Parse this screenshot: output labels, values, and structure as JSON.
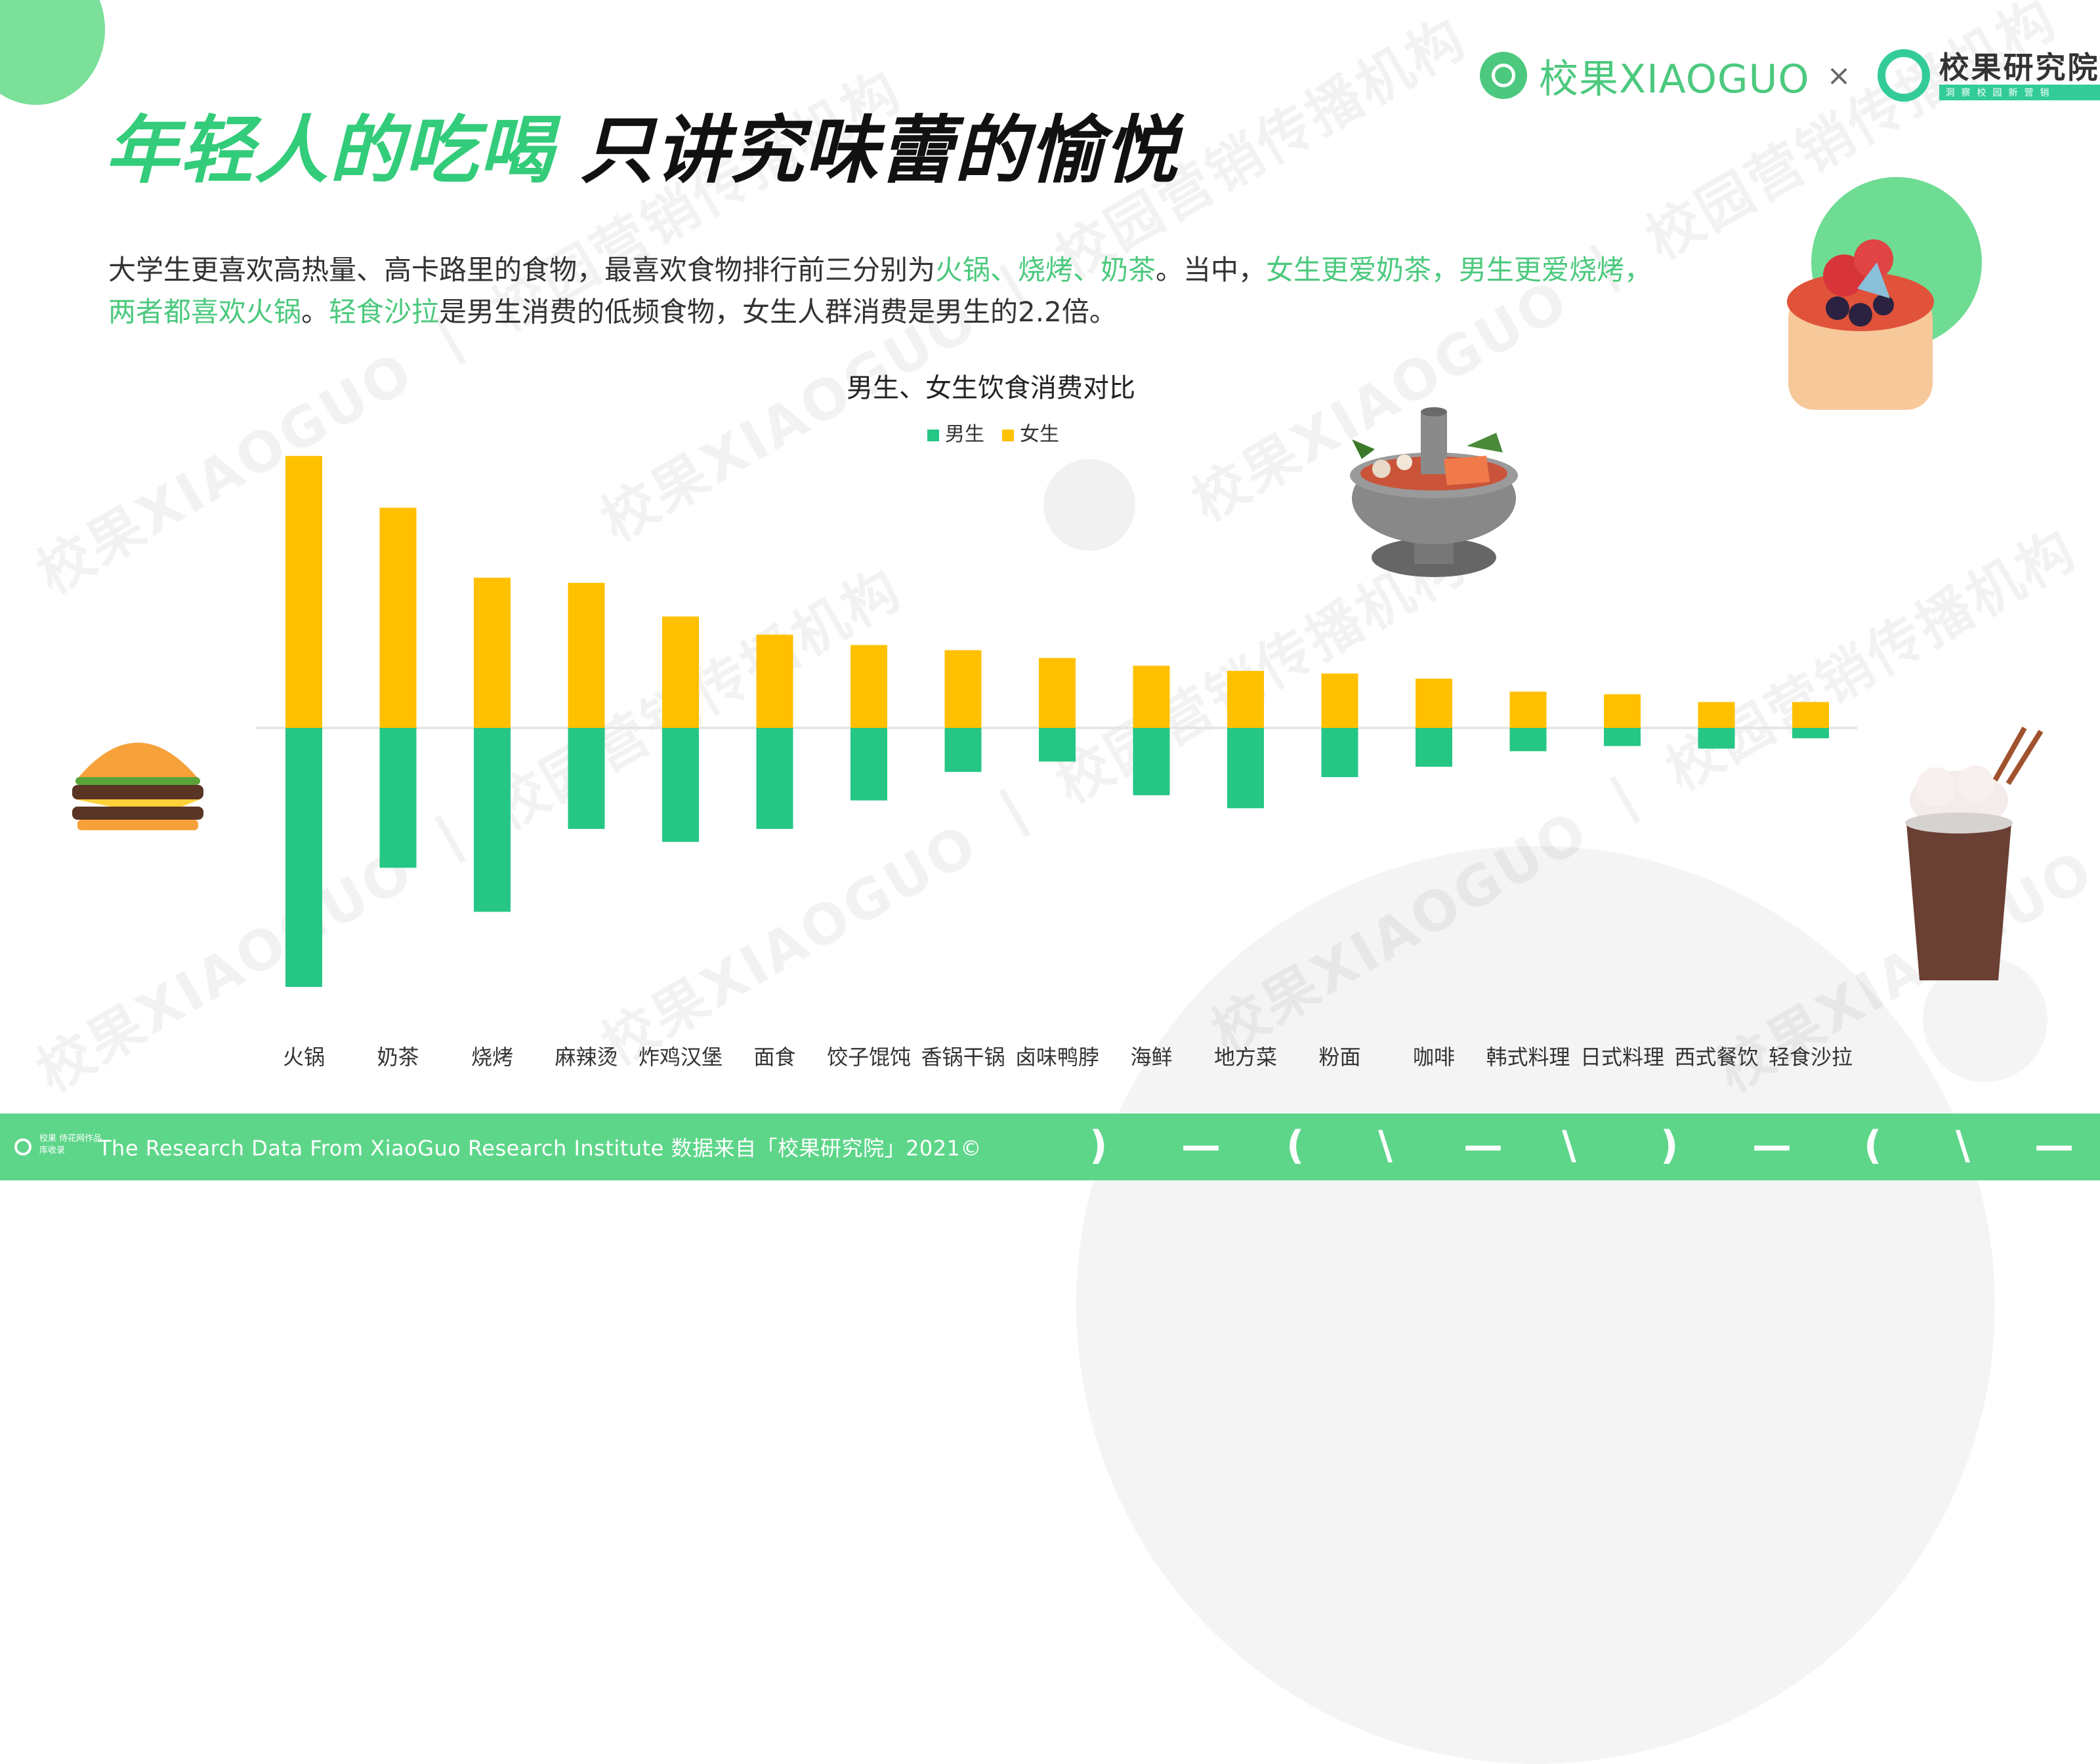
{
  "header": {
    "title_green": "年轻人的吃喝",
    "title_black": "只讲究味蕾的愉悦",
    "logo_name": "校果XIAOGUO",
    "logo_separator": "×",
    "logo2_name": "校果研究院",
    "logo2_slogan": "洞察校园新营销"
  },
  "intro": {
    "p1": "大学生更喜欢高热量、高卡路里的食物，最喜欢食物排行前三分别为",
    "h1": "火锅、烧烤、奶茶",
    "p2": "。当中，",
    "h2": "女生更爱奶茶，男生更爱烧烤，两者都喜欢火锅",
    "p3": "。",
    "h3": "轻食沙拉",
    "p4": "是男生消费的低频食物，女生人群消费是男生的2.2倍。"
  },
  "watermark": {
    "text": "校果XIAOGUO 丨 校园营销传播机构"
  },
  "footer": {
    "badge_text": "校果 侍花网作品库收录",
    "text": "The Research Data  From XiaoGuo Research Institute 数据来自「校果研究院」2021©"
  },
  "colors": {
    "male": "#26c685",
    "female": "#ffc000",
    "accent": "#4cc97e",
    "footer": "#5ed68a"
  },
  "chart_data": {
    "type": "bar",
    "title": "男生、女生饮食消费对比",
    "categories": [
      "火锅",
      "奶茶",
      "烧烤",
      "麻辣烫",
      "炸鸡汉堡",
      "面食",
      "饺子馄饨",
      "香锅干锅",
      "卤味鸭脖",
      "海鲜",
      "地方菜",
      "粉面",
      "咖啡",
      "韩式料理",
      "日式料理",
      "西式餐饮",
      "轻食沙拉"
    ],
    "series": [
      {
        "name": "男生",
        "values": [
          -10.0,
          -5.4,
          -7.1,
          -3.9,
          -4.4,
          -3.9,
          -2.8,
          -1.7,
          -1.3,
          -2.6,
          -3.1,
          -1.9,
          -1.5,
          -0.9,
          -0.7,
          -0.8,
          -0.4
        ]
      },
      {
        "name": "女生",
        "values": [
          10.5,
          8.5,
          5.8,
          5.6,
          4.3,
          3.6,
          3.2,
          3.0,
          2.7,
          2.4,
          2.2,
          2.1,
          1.9,
          1.4,
          1.3,
          1.0,
          1.0
        ]
      }
    ],
    "legend": "top-center",
    "grid": false,
    "ylim": [
      -11,
      11
    ]
  }
}
